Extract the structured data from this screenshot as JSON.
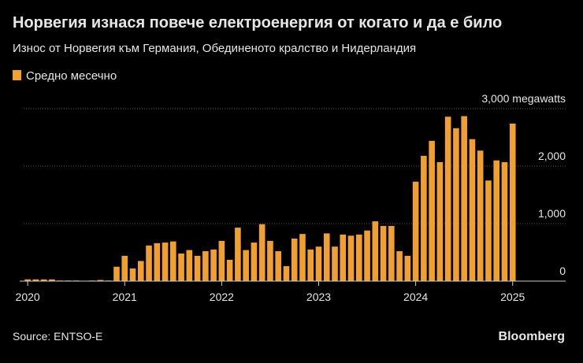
{
  "chart_data": {
    "type": "bar",
    "title": "Норвегия изнася повече електроенергия от когато и да е било",
    "subtitle": "Износ от Норвегия към Германия, Обединеното кралство и Нидерландия",
    "source": "Source: ENTSO-E",
    "brand": "Bloomberg",
    "series": [
      {
        "name": "Средно месечно",
        "color": "#f0a030",
        "values": [
          30,
          30,
          30,
          30,
          10,
          10,
          10,
          5,
          10,
          20,
          10,
          250,
          440,
          220,
          350,
          620,
          660,
          670,
          690,
          480,
          540,
          440,
          520,
          550,
          700,
          370,
          930,
          540,
          670,
          990,
          700,
          520,
          260,
          740,
          820,
          550,
          600,
          830,
          600,
          810,
          790,
          810,
          880,
          1040,
          960,
          960,
          520,
          440,
          1730,
          2180,
          2440,
          2070,
          2860,
          2660,
          2870,
          2470,
          2270,
          1750,
          2100,
          2070,
          2740
        ]
      }
    ],
    "categories": [
      "2020",
      null,
      null,
      null,
      null,
      null,
      null,
      null,
      null,
      null,
      null,
      null,
      "2021",
      null,
      null,
      null,
      null,
      null,
      null,
      null,
      null,
      null,
      null,
      null,
      "2022",
      null,
      null,
      null,
      null,
      null,
      null,
      null,
      null,
      null,
      null,
      null,
      "2023",
      null,
      null,
      null,
      null,
      null,
      null,
      null,
      null,
      null,
      null,
      null,
      "2024",
      null,
      null,
      null,
      null,
      null,
      null,
      null,
      null,
      null,
      null,
      null,
      "2025"
    ],
    "ylim": [
      0,
      3000
    ],
    "yticks": [
      0,
      {
        "value": 1000,
        "label": "1,000"
      },
      {
        "value": 2000,
        "label": "2,000"
      },
      {
        "value": 3000,
        "label": "3,000 megawatts"
      }
    ],
    "grid": true
  }
}
